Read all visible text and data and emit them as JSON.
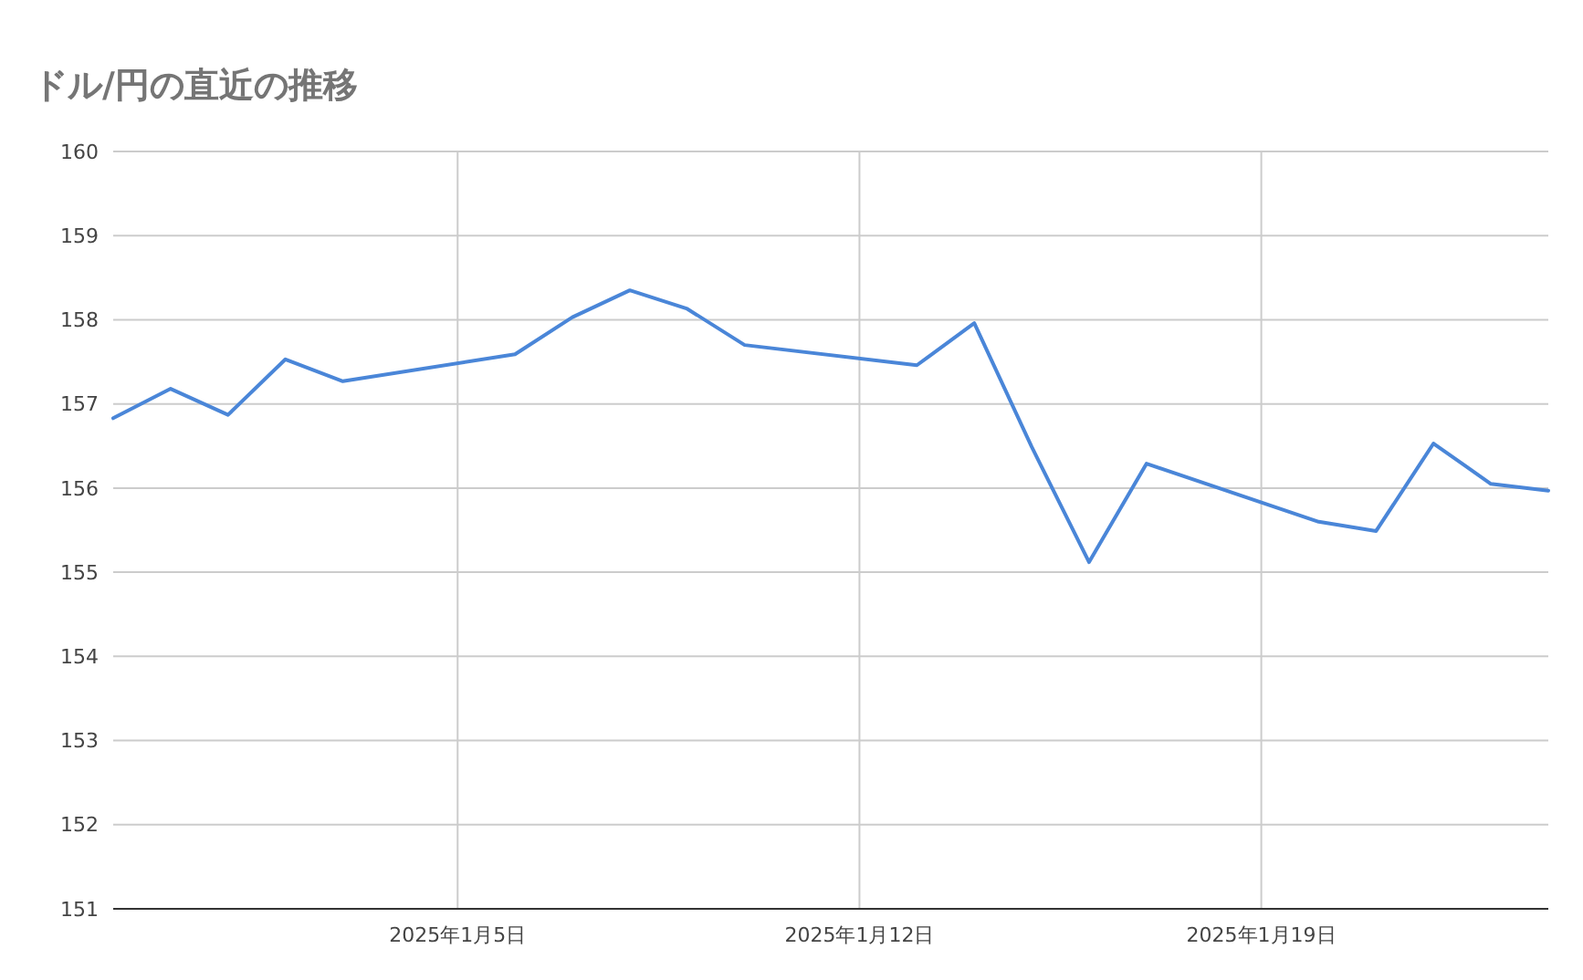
{
  "chart_data": {
    "type": "line",
    "title": "ドル/円の直近の推移",
    "x": [
      "2024-12-30",
      "2024-12-31",
      "2025-01-01",
      "2025-01-02",
      "2025-01-03",
      "2025-01-06",
      "2025-01-07",
      "2025-01-08",
      "2025-01-09",
      "2025-01-10",
      "2025-01-13",
      "2025-01-14",
      "2025-01-15",
      "2025-01-16",
      "2025-01-17",
      "2025-01-20",
      "2025-01-21",
      "2025-01-22",
      "2025-01-23",
      "2025-01-24"
    ],
    "series": [
      {
        "color": "#4a86d8",
        "values": [
          156.83,
          157.18,
          156.87,
          157.53,
          157.27,
          157.59,
          158.03,
          158.35,
          158.13,
          157.7,
          157.46,
          157.96,
          156.49,
          155.12,
          156.29,
          155.6,
          155.49,
          156.53,
          156.05,
          155.97
        ]
      }
    ],
    "xlim": [
      "2024-12-30",
      "2025-01-24"
    ],
    "xticks": [
      {
        "value": "2025-01-05",
        "label": "2025年1月5日"
      },
      {
        "value": "2025-01-12",
        "label": "2025年1月12日"
      },
      {
        "value": "2025-01-19",
        "label": "2025年1月19日"
      }
    ],
    "ylim": [
      151,
      160
    ],
    "yticks": [
      151,
      152,
      153,
      154,
      155,
      156,
      157,
      158,
      159,
      160
    ],
    "grid": true,
    "marker": "none",
    "line_style": "solid"
  }
}
